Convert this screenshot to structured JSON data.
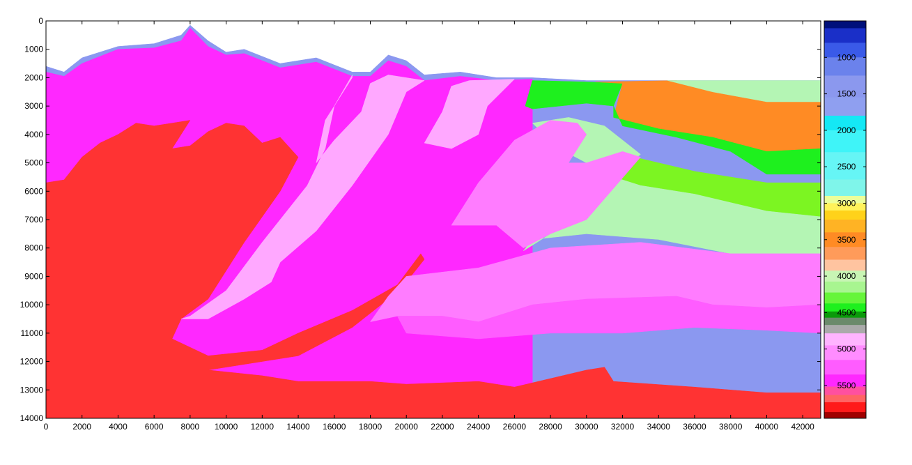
{
  "chart_data": {
    "type": "heatmap",
    "title": "",
    "xlabel": "",
    "ylabel": "",
    "xlim": [
      0,
      43000
    ],
    "ylim": [
      14000,
      0
    ],
    "y_direction": "down",
    "x_ticks": [
      0,
      2000,
      4000,
      6000,
      8000,
      10000,
      12000,
      14000,
      16000,
      18000,
      20000,
      22000,
      24000,
      26000,
      28000,
      30000,
      32000,
      34000,
      36000,
      38000,
      40000,
      42000
    ],
    "y_ticks": [
      0,
      1000,
      2000,
      3000,
      4000,
      5000,
      6000,
      7000,
      8000,
      9000,
      10000,
      11000,
      12000,
      13000,
      14000
    ],
    "colorbar": {
      "range": [
        500,
        5950
      ],
      "ticks": [
        1000,
        1500,
        2000,
        2500,
        3000,
        3500,
        4000,
        4500,
        5000,
        5500
      ],
      "colors": [
        {
          "v": 500,
          "c": "#00107a"
        },
        {
          "v": 700,
          "c": "#1a2fc8"
        },
        {
          "v": 900,
          "c": "#3a5ae8"
        },
        {
          "v": 1100,
          "c": "#6b82ec"
        },
        {
          "v": 1400,
          "c": "#8b98ee"
        },
        {
          "v": 1700,
          "c": "#8f9ff0"
        },
        {
          "v": 1900,
          "c": "#14e8f5"
        },
        {
          "v": 2100,
          "c": "#3ff4f8"
        },
        {
          "v": 2500,
          "c": "#66f5f5"
        },
        {
          "v": 2850,
          "c": "#7ff5ea"
        },
        {
          "v": 2950,
          "c": "#ecff9a"
        },
        {
          "v": 3050,
          "c": "#fff25a"
        },
        {
          "v": 3150,
          "c": "#ffd21a"
        },
        {
          "v": 3300,
          "c": "#ffb324"
        },
        {
          "v": 3500,
          "c": "#ff8b24"
        },
        {
          "v": 3700,
          "c": "#ff9b5a"
        },
        {
          "v": 3850,
          "c": "#ffc4a0"
        },
        {
          "v": 4000,
          "c": "#c8f5b4"
        },
        {
          "v": 4150,
          "c": "#a8f590"
        },
        {
          "v": 4300,
          "c": "#66f53a"
        },
        {
          "v": 4450,
          "c": "#1ef01e"
        },
        {
          "v": 4520,
          "c": "#0a9a0a"
        },
        {
          "v": 4620,
          "c": "#6b8a6b"
        },
        {
          "v": 4720,
          "c": "#aaaaaa"
        },
        {
          "v": 4850,
          "c": "#ffb4ff"
        },
        {
          "v": 5050,
          "c": "#ff8cff"
        },
        {
          "v": 5250,
          "c": "#ff5cff"
        },
        {
          "v": 5450,
          "c": "#ff28ff"
        },
        {
          "v": 5580,
          "c": "#ff50a0"
        },
        {
          "v": 5680,
          "c": "#ff6464"
        },
        {
          "v": 5780,
          "c": "#ff1a1a"
        },
        {
          "v": 5950,
          "c": "#a00000"
        }
      ]
    },
    "layers": [
      {
        "name": "water",
        "value": 1500,
        "color": "#8b98f0",
        "polygon": [
          [
            0,
            1600
          ],
          [
            1000,
            1800
          ],
          [
            2000,
            1300
          ],
          [
            4000,
            900
          ],
          [
            6000,
            800
          ],
          [
            7500,
            500
          ],
          [
            8000,
            150
          ],
          [
            9000,
            700
          ],
          [
            10000,
            1100
          ],
          [
            11000,
            1000
          ],
          [
            13000,
            1500
          ],
          [
            15000,
            1300
          ],
          [
            17000,
            1800
          ],
          [
            18000,
            1800
          ],
          [
            19000,
            1200
          ],
          [
            20000,
            1400
          ],
          [
            21000,
            1900
          ],
          [
            23000,
            1800
          ],
          [
            25000,
            2000
          ],
          [
            27000,
            2000
          ],
          [
            30000,
            2100
          ],
          [
            35000,
            2100
          ],
          [
            43000,
            2100
          ],
          [
            43000,
            14000
          ],
          [
            0,
            14000
          ]
        ]
      },
      {
        "name": "basement-magenta",
        "value": 5450,
        "color": "#ff28ff",
        "polygon": [
          [
            0,
            1800
          ],
          [
            1000,
            1950
          ],
          [
            2000,
            1500
          ],
          [
            4000,
            1000
          ],
          [
            6000,
            950
          ],
          [
            7500,
            700
          ],
          [
            8000,
            250
          ],
          [
            9000,
            900
          ],
          [
            10000,
            1200
          ],
          [
            11000,
            1150
          ],
          [
            13000,
            1650
          ],
          [
            15000,
            1450
          ],
          [
            17000,
            1950
          ],
          [
            18000,
            1950
          ],
          [
            19000,
            1400
          ],
          [
            20000,
            1600
          ],
          [
            21000,
            2100
          ],
          [
            23000,
            1950
          ],
          [
            25000,
            2100
          ],
          [
            27000,
            2050
          ],
          [
            27000,
            14000
          ],
          [
            0,
            14000
          ]
        ]
      },
      {
        "name": "green-top",
        "value": 4450,
        "color": "#1ef01e",
        "polygon": [
          [
            27000,
            2100
          ],
          [
            30000,
            2150
          ],
          [
            32000,
            2200
          ],
          [
            31500,
            3000
          ],
          [
            30000,
            2900
          ],
          [
            27000,
            3100
          ],
          [
            26600,
            3000
          ]
        ]
      },
      {
        "name": "orange-shelf",
        "value": 3500,
        "color": "#ff8b24",
        "polygon": [
          [
            30500,
            2150
          ],
          [
            35000,
            2100
          ],
          [
            37000,
            2500
          ],
          [
            40000,
            2850
          ],
          [
            43000,
            2850
          ],
          [
            43000,
            4500
          ],
          [
            40000,
            4600
          ],
          [
            37000,
            4100
          ],
          [
            34000,
            3800
          ],
          [
            31500,
            3400
          ],
          [
            32000,
            2200
          ]
        ]
      },
      {
        "name": "pale-green-top",
        "value": 4000,
        "color": "#b4f5b4",
        "polygon": [
          [
            34500,
            2100
          ],
          [
            43000,
            2100
          ],
          [
            43000,
            2850
          ],
          [
            40000,
            2850
          ],
          [
            37000,
            2500
          ]
        ]
      },
      {
        "name": "green-lower",
        "value": 4450,
        "color": "#1ef01e",
        "polygon": [
          [
            31500,
            3000
          ],
          [
            32000,
            3700
          ],
          [
            35000,
            4100
          ],
          [
            38000,
            4600
          ],
          [
            40000,
            5400
          ],
          [
            43000,
            5400
          ],
          [
            43000,
            4500
          ],
          [
            40000,
            4600
          ],
          [
            37000,
            4100
          ],
          [
            34000,
            3800
          ],
          [
            31500,
            3400
          ]
        ]
      },
      {
        "name": "light-green-layer",
        "value": 4300,
        "color": "#7cf522",
        "polygon": [
          [
            32000,
            4700
          ],
          [
            36000,
            5300
          ],
          [
            40000,
            5700
          ],
          [
            43000,
            5700
          ],
          [
            43000,
            6900
          ],
          [
            40000,
            6700
          ],
          [
            36000,
            6100
          ],
          [
            33000,
            5800
          ],
          [
            31500,
            5500
          ]
        ]
      },
      {
        "name": "pale-green-wedge",
        "value": 4000,
        "color": "#b4f5b4",
        "polygon": [
          [
            27000,
            3600
          ],
          [
            29000,
            3400
          ],
          [
            31000,
            3700
          ],
          [
            33000,
            4700
          ],
          [
            31500,
            5500
          ],
          [
            33000,
            5800
          ],
          [
            36000,
            6100
          ],
          [
            40000,
            6700
          ],
          [
            43000,
            6900
          ],
          [
            43000,
            8200
          ],
          [
            38000,
            8200
          ],
          [
            34000,
            7700
          ],
          [
            30000,
            7500
          ],
          [
            27000,
            7700
          ],
          [
            26500,
            8100
          ],
          [
            28000,
            7500
          ],
          [
            30000,
            7000
          ],
          [
            32000,
            5200
          ],
          [
            30000,
            5000
          ],
          [
            28500,
            4500
          ]
        ]
      },
      {
        "name": "red-basement",
        "value": 5700,
        "color": "#ff3333",
        "polygon": [
          [
            0,
            5700
          ],
          [
            1000,
            5600
          ],
          [
            2000,
            4800
          ],
          [
            3000,
            4300
          ],
          [
            4000,
            4000
          ],
          [
            5000,
            3600
          ],
          [
            6000,
            3700
          ],
          [
            7000,
            3600
          ],
          [
            8000,
            3500
          ],
          [
            7000,
            4500
          ],
          [
            8000,
            4400
          ],
          [
            9000,
            3900
          ],
          [
            10000,
            3600
          ],
          [
            11000,
            3700
          ],
          [
            12000,
            4300
          ],
          [
            13000,
            4100
          ],
          [
            14000,
            4800
          ],
          [
            13000,
            6000
          ],
          [
            11000,
            7800
          ],
          [
            9000,
            9800
          ],
          [
            7500,
            10500
          ],
          [
            7000,
            11200
          ],
          [
            9000,
            11800
          ],
          [
            12000,
            11600
          ],
          [
            14000,
            11000
          ],
          [
            17000,
            10200
          ],
          [
            19500,
            9300
          ],
          [
            20800,
            8200
          ],
          [
            21000,
            8400
          ],
          [
            20000,
            9200
          ],
          [
            19000,
            9800
          ],
          [
            17000,
            10800
          ],
          [
            14000,
            11800
          ],
          [
            11000,
            12100
          ],
          [
            9000,
            12300
          ],
          [
            12000,
            12500
          ],
          [
            14000,
            12700
          ],
          [
            18000,
            12700
          ],
          [
            20000,
            12800
          ],
          [
            24000,
            12700
          ],
          [
            26000,
            12900
          ],
          [
            30000,
            12300
          ],
          [
            31000,
            12200
          ],
          [
            31500,
            12700
          ],
          [
            36000,
            12900
          ],
          [
            40000,
            13100
          ],
          [
            43000,
            13100
          ],
          [
            43000,
            14000
          ],
          [
            0,
            14000
          ]
        ]
      },
      {
        "name": "pale-pink-fan",
        "value": 4950,
        "color": "#ffa8ff",
        "polygon": [
          [
            17000,
            1900
          ],
          [
            16000,
            3000
          ],
          [
            15500,
            4500
          ],
          [
            14500,
            5800
          ],
          [
            12000,
            7800
          ],
          [
            10000,
            9500
          ],
          [
            8000,
            10400
          ],
          [
            7500,
            10500
          ],
          [
            9000,
            10500
          ],
          [
            11000,
            9800
          ],
          [
            12500,
            9200
          ],
          [
            13000,
            8500
          ],
          [
            15000,
            7400
          ],
          [
            17000,
            5800
          ],
          [
            19000,
            4000
          ],
          [
            20000,
            2500
          ],
          [
            21000,
            2100
          ],
          [
            19000,
            1900
          ],
          [
            18000,
            2200
          ],
          [
            17500,
            3200
          ],
          [
            16000,
            4200
          ],
          [
            15000,
            5000
          ],
          [
            15500,
            3500
          ],
          [
            17000,
            2000
          ]
        ]
      },
      {
        "name": "pale-pink-right",
        "value": 4950,
        "color": "#ffa8ff",
        "polygon": [
          [
            23500,
            2100
          ],
          [
            26000,
            2050
          ],
          [
            24500,
            3000
          ],
          [
            24000,
            4000
          ],
          [
            22500,
            4500
          ],
          [
            21000,
            4300
          ],
          [
            22000,
            3200
          ],
          [
            22500,
            2300
          ]
        ]
      },
      {
        "name": "pink-upper-right",
        "value": 5150,
        "color": "#ff7cff",
        "polygon": [
          [
            26000,
            4200
          ],
          [
            28000,
            3500
          ],
          [
            29500,
            3600
          ],
          [
            30000,
            4000
          ],
          [
            29000,
            5000
          ],
          [
            30000,
            5000
          ],
          [
            32000,
            4600
          ],
          [
            33000,
            4800
          ],
          [
            30000,
            7000
          ],
          [
            28000,
            7500
          ],
          [
            26500,
            8000
          ],
          [
            25000,
            7200
          ],
          [
            22500,
            7200
          ],
          [
            24000,
            5700
          ]
        ]
      },
      {
        "name": "pink-middle",
        "value": 5150,
        "color": "#ff7cff",
        "polygon": [
          [
            20000,
            9000
          ],
          [
            24000,
            8700
          ],
          [
            28000,
            8000
          ],
          [
            33000,
            7800
          ],
          [
            38000,
            8200
          ],
          [
            43000,
            8200
          ],
          [
            43000,
            10000
          ],
          [
            40000,
            10100
          ],
          [
            37000,
            10000
          ],
          [
            35000,
            9700
          ],
          [
            30000,
            9800
          ],
          [
            27000,
            10000
          ],
          [
            24000,
            10600
          ],
          [
            22000,
            10400
          ],
          [
            19500,
            10400
          ],
          [
            18000,
            10600
          ],
          [
            19000,
            9700
          ]
        ]
      },
      {
        "name": "pink-lower",
        "value": 5250,
        "color": "#ff5cff",
        "polygon": [
          [
            19500,
            10400
          ],
          [
            22000,
            10400
          ],
          [
            24000,
            10600
          ],
          [
            27000,
            10000
          ],
          [
            30000,
            9800
          ],
          [
            35000,
            9700
          ],
          [
            37000,
            10000
          ],
          [
            40000,
            10100
          ],
          [
            43000,
            10000
          ],
          [
            43000,
            11000
          ],
          [
            40000,
            10900
          ],
          [
            36000,
            10800
          ],
          [
            32000,
            11000
          ],
          [
            28000,
            11000
          ],
          [
            24000,
            11200
          ],
          [
            20000,
            11000
          ]
        ]
      }
    ]
  }
}
